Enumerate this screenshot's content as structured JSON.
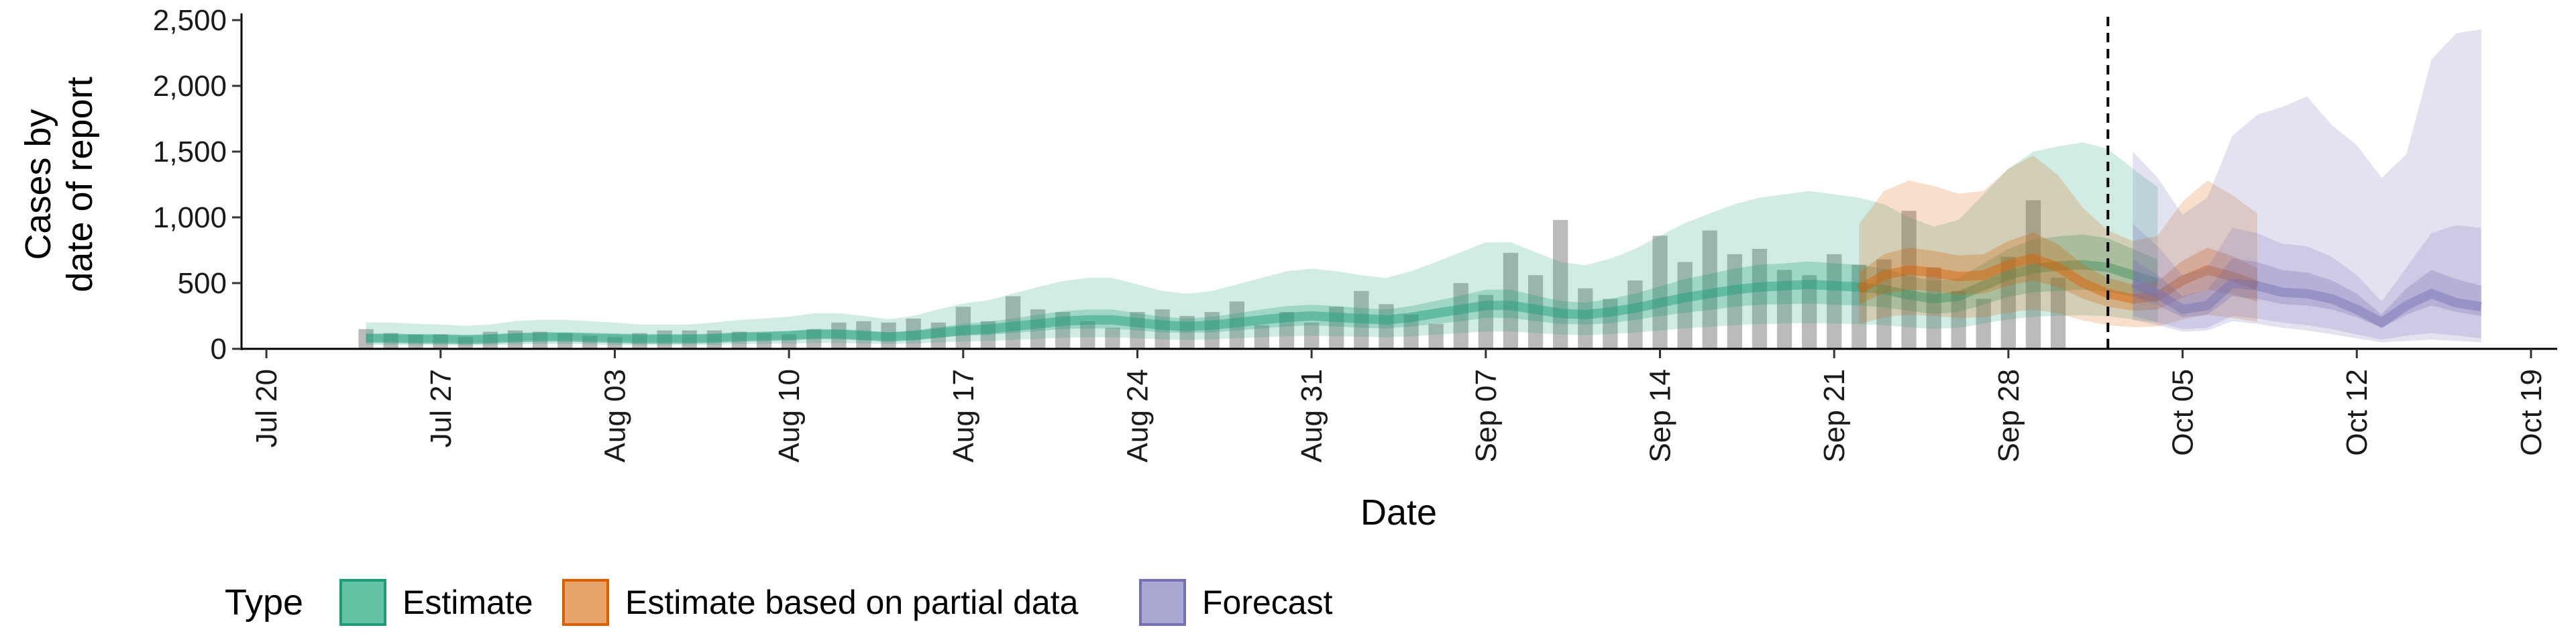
{
  "chart_data": {
    "type": "bar+area",
    "xlabel": "Date",
    "ylabel_lines": [
      "Cases by",
      "date of report"
    ],
    "ylim": [
      0,
      2500
    ],
    "yticks": [
      0,
      500,
      1000,
      1500,
      2000,
      2500
    ],
    "ytick_labels": [
      "0",
      "500",
      "1,000",
      "1,500",
      "2,000",
      "2,500"
    ],
    "xlim": [
      "2020-07-19",
      "2020-10-20"
    ],
    "xticks": [
      "2020-07-20",
      "2020-07-27",
      "2020-08-03",
      "2020-08-10",
      "2020-08-17",
      "2020-08-24",
      "2020-08-31",
      "2020-09-07",
      "2020-09-14",
      "2020-09-21",
      "2020-09-28",
      "2020-10-05",
      "2020-10-12",
      "2020-10-19"
    ],
    "xtick_labels": [
      "Jul 20",
      "Jul 27",
      "Aug 03",
      "Aug 10",
      "Aug 17",
      "Aug 24",
      "Aug 31",
      "Sep 07",
      "Sep 14",
      "Sep 21",
      "Sep 28",
      "Oct 05",
      "Oct 12",
      "Oct 19"
    ],
    "vline_date": "2020-10-02",
    "legend": {
      "title": "Type",
      "position": "bottom",
      "items": [
        {
          "label": "Estimate",
          "fill": "#66c2a5",
          "stroke": "#1b9e77"
        },
        {
          "label": "Estimate based on partial data",
          "fill": "#e8a368",
          "stroke": "#d95f02"
        },
        {
          "label": "Forecast",
          "fill": "#a9a8d3",
          "stroke": "#7570b3"
        }
      ]
    },
    "colors": {
      "estimate": "#1b9e77",
      "partial": "#d95f02",
      "forecast": "#7570b3",
      "bars": "#9e9e9e"
    },
    "reported_cases": {
      "start_date": "2020-07-24",
      "values": [
        150,
        120,
        110,
        110,
        90,
        130,
        140,
        130,
        120,
        100,
        90,
        120,
        140,
        140,
        140,
        130,
        120,
        110,
        150,
        200,
        210,
        200,
        230,
        200,
        320,
        210,
        400,
        300,
        280,
        210,
        160,
        280,
        300,
        250,
        280,
        360,
        180,
        280,
        200,
        320,
        440,
        340,
        260,
        190,
        500,
        410,
        730,
        560,
        980,
        460,
        380,
        520,
        860,
        660,
        900,
        720,
        760,
        600,
        560,
        720,
        640,
        680,
        1050,
        620,
        440,
        380,
        700,
        1130,
        540
      ]
    },
    "series": [
      {
        "name": "Estimate",
        "start_date": "2020-07-24",
        "median": [
          80,
          80,
          75,
          75,
          70,
          75,
          85,
          90,
          90,
          85,
          80,
          75,
          75,
          75,
          80,
          90,
          95,
          100,
          110,
          110,
          100,
          90,
          100,
          120,
          140,
          150,
          170,
          190,
          210,
          220,
          220,
          200,
          180,
          170,
          180,
          200,
          220,
          240,
          250,
          240,
          230,
          220,
          240,
          270,
          300,
          330,
          330,
          300,
          270,
          260,
          280,
          310,
          350,
          390,
          420,
          450,
          470,
          480,
          490,
          480,
          470,
          450,
          410,
          380,
          400,
          480,
          560,
          610,
          630,
          640,
          620,
          560,
          500
        ],
        "lower_50": [
          55,
          55,
          50,
          50,
          45,
          50,
          60,
          65,
          65,
          60,
          55,
          50,
          50,
          50,
          55,
          65,
          70,
          70,
          80,
          80,
          70,
          65,
          70,
          85,
          100,
          105,
          120,
          135,
          150,
          155,
          155,
          140,
          125,
          120,
          125,
          140,
          155,
          170,
          180,
          170,
          160,
          155,
          170,
          190,
          210,
          235,
          235,
          210,
          190,
          185,
          195,
          220,
          250,
          275,
          295,
          320,
          335,
          340,
          345,
          335,
          330,
          315,
          290,
          265,
          280,
          335,
          395,
          430,
          440,
          450,
          435,
          395,
          350
        ],
        "upper_50": [
          110,
          110,
          105,
          105,
          100,
          105,
          115,
          120,
          120,
          115,
          110,
          105,
          105,
          105,
          110,
          120,
          125,
          135,
          150,
          150,
          140,
          125,
          140,
          165,
          190,
          205,
          230,
          260,
          285,
          300,
          300,
          270,
          245,
          230,
          245,
          270,
          300,
          325,
          335,
          325,
          310,
          300,
          325,
          365,
          405,
          450,
          450,
          405,
          365,
          350,
          380,
          420,
          475,
          530,
          570,
          610,
          640,
          650,
          665,
          650,
          640,
          610,
          555,
          515,
          540,
          650,
          760,
          830,
          855,
          870,
          840,
          760,
          680
        ],
        "lower_90": [
          30,
          30,
          28,
          28,
          25,
          28,
          33,
          36,
          36,
          33,
          30,
          28,
          28,
          28,
          30,
          36,
          38,
          40,
          45,
          45,
          40,
          36,
          40,
          48,
          56,
          60,
          68,
          76,
          84,
          88,
          88,
          80,
          72,
          68,
          72,
          80,
          88,
          96,
          100,
          96,
          92,
          88,
          96,
          108,
          120,
          132,
          132,
          120,
          108,
          104,
          112,
          124,
          140,
          156,
          168,
          180,
          188,
          192,
          196,
          192,
          188,
          180,
          164,
          152,
          160,
          192,
          224,
          244,
          252,
          256,
          248,
          224,
          200
        ],
        "upper_90": [
          200,
          200,
          190,
          185,
          175,
          185,
          210,
          220,
          220,
          210,
          200,
          185,
          185,
          185,
          200,
          220,
          230,
          245,
          270,
          270,
          250,
          225,
          250,
          300,
          345,
          370,
          420,
          470,
          515,
          540,
          540,
          490,
          440,
          420,
          440,
          490,
          540,
          590,
          610,
          590,
          560,
          540,
          590,
          660,
          735,
          810,
          810,
          735,
          660,
          635,
          685,
          760,
          860,
          955,
          1030,
          1100,
          1150,
          1175,
          1200,
          1175,
          1150,
          1100,
          1000,
          930,
          980,
          1175,
          1370,
          1500,
          1540,
          1570,
          1520,
          1370,
          1230
        ]
      },
      {
        "name": "Estimate based on partial data",
        "start_date": "2020-09-22",
        "median": [
          450,
          560,
          600,
          580,
          550,
          560,
          640,
          690,
          620,
          500,
          420,
          380,
          400,
          520,
          600,
          550,
          480
        ],
        "lower_50": [
          340,
          420,
          450,
          440,
          410,
          420,
          480,
          520,
          470,
          380,
          320,
          290,
          300,
          390,
          450,
          415,
          360
        ],
        "upper_50": [
          580,
          720,
          770,
          745,
          710,
          720,
          820,
          885,
          795,
          640,
          540,
          490,
          515,
          670,
          770,
          705,
          615
        ],
        "lower_90": [
          190,
          240,
          260,
          250,
          235,
          240,
          275,
          300,
          270,
          215,
          180,
          165,
          170,
          225,
          260,
          235,
          205
        ],
        "upper_90": [
          950,
          1200,
          1280,
          1240,
          1180,
          1200,
          1370,
          1470,
          1320,
          1070,
          900,
          820,
          860,
          1120,
          1280,
          1170,
          1030
        ]
      },
      {
        "name": "Forecast",
        "start_date": "2020-10-03",
        "median": [
          500,
          420,
          300,
          330,
          500,
          480,
          430,
          420,
          380,
          300,
          200,
          330,
          420,
          350,
          320
        ],
        "lower_50": [
          400,
          330,
          240,
          260,
          400,
          380,
          340,
          330,
          300,
          240,
          160,
          260,
          330,
          280,
          250
        ],
        "upper_50": [
          680,
          560,
          400,
          450,
          690,
          660,
          600,
          580,
          520,
          420,
          260,
          460,
          600,
          530,
          480
        ],
        "lower_90": [
          250,
          200,
          150,
          160,
          250,
          230,
          200,
          180,
          150,
          110,
          70,
          100,
          120,
          100,
          80
        ],
        "upper_90": [
          950,
          780,
          560,
          620,
          920,
          880,
          800,
          780,
          700,
          560,
          360,
          620,
          880,
          940,
          920
        ],
        "lower_outer": [
          220,
          180,
          130,
          140,
          210,
          190,
          160,
          140,
          110,
          80,
          50,
          60,
          70,
          60,
          50
        ],
        "upper_outer": [
          1500,
          1300,
          1020,
          1150,
          1620,
          1780,
          1840,
          1920,
          1700,
          1550,
          1300,
          1480,
          2200,
          2400,
          2430
        ]
      }
    ]
  }
}
